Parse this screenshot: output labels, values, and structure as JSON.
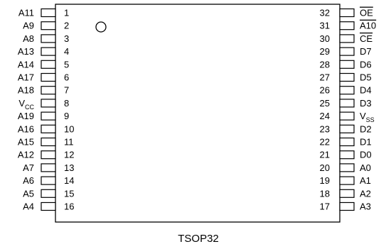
{
  "package": {
    "name": "TSOP32",
    "pin1_marker": "circle"
  },
  "pins_left": [
    {
      "num": "1",
      "label": "A11"
    },
    {
      "num": "2",
      "label": "A9"
    },
    {
      "num": "3",
      "label": "A8"
    },
    {
      "num": "4",
      "label": "A13"
    },
    {
      "num": "5",
      "label": "A14"
    },
    {
      "num": "6",
      "label": "A17"
    },
    {
      "num": "7",
      "label": "A18"
    },
    {
      "num": "8",
      "label": "V",
      "sub": "CC"
    },
    {
      "num": "9",
      "label": "A19"
    },
    {
      "num": "10",
      "label": "A16"
    },
    {
      "num": "11",
      "label": "A15"
    },
    {
      "num": "12",
      "label": "A12"
    },
    {
      "num": "13",
      "label": "A7"
    },
    {
      "num": "14",
      "label": "A6"
    },
    {
      "num": "15",
      "label": "A5"
    },
    {
      "num": "16",
      "label": "A4"
    }
  ],
  "pins_right": [
    {
      "num": "32",
      "label": "OE",
      "overline": true
    },
    {
      "num": "31",
      "label": "A10",
      "overline": true
    },
    {
      "num": "30",
      "label": "CE",
      "overline": true
    },
    {
      "num": "29",
      "label": "D7"
    },
    {
      "num": "28",
      "label": "D6"
    },
    {
      "num": "27",
      "label": "D5"
    },
    {
      "num": "26",
      "label": "D4"
    },
    {
      "num": "25",
      "label": "D3"
    },
    {
      "num": "24",
      "label": "V",
      "sub": "SS"
    },
    {
      "num": "23",
      "label": "D2"
    },
    {
      "num": "22",
      "label": "D1"
    },
    {
      "num": "21",
      "label": "D0"
    },
    {
      "num": "20",
      "label": "A0"
    },
    {
      "num": "19",
      "label": "A1"
    },
    {
      "num": "18",
      "label": "A2"
    },
    {
      "num": "17",
      "label": "A3"
    }
  ]
}
